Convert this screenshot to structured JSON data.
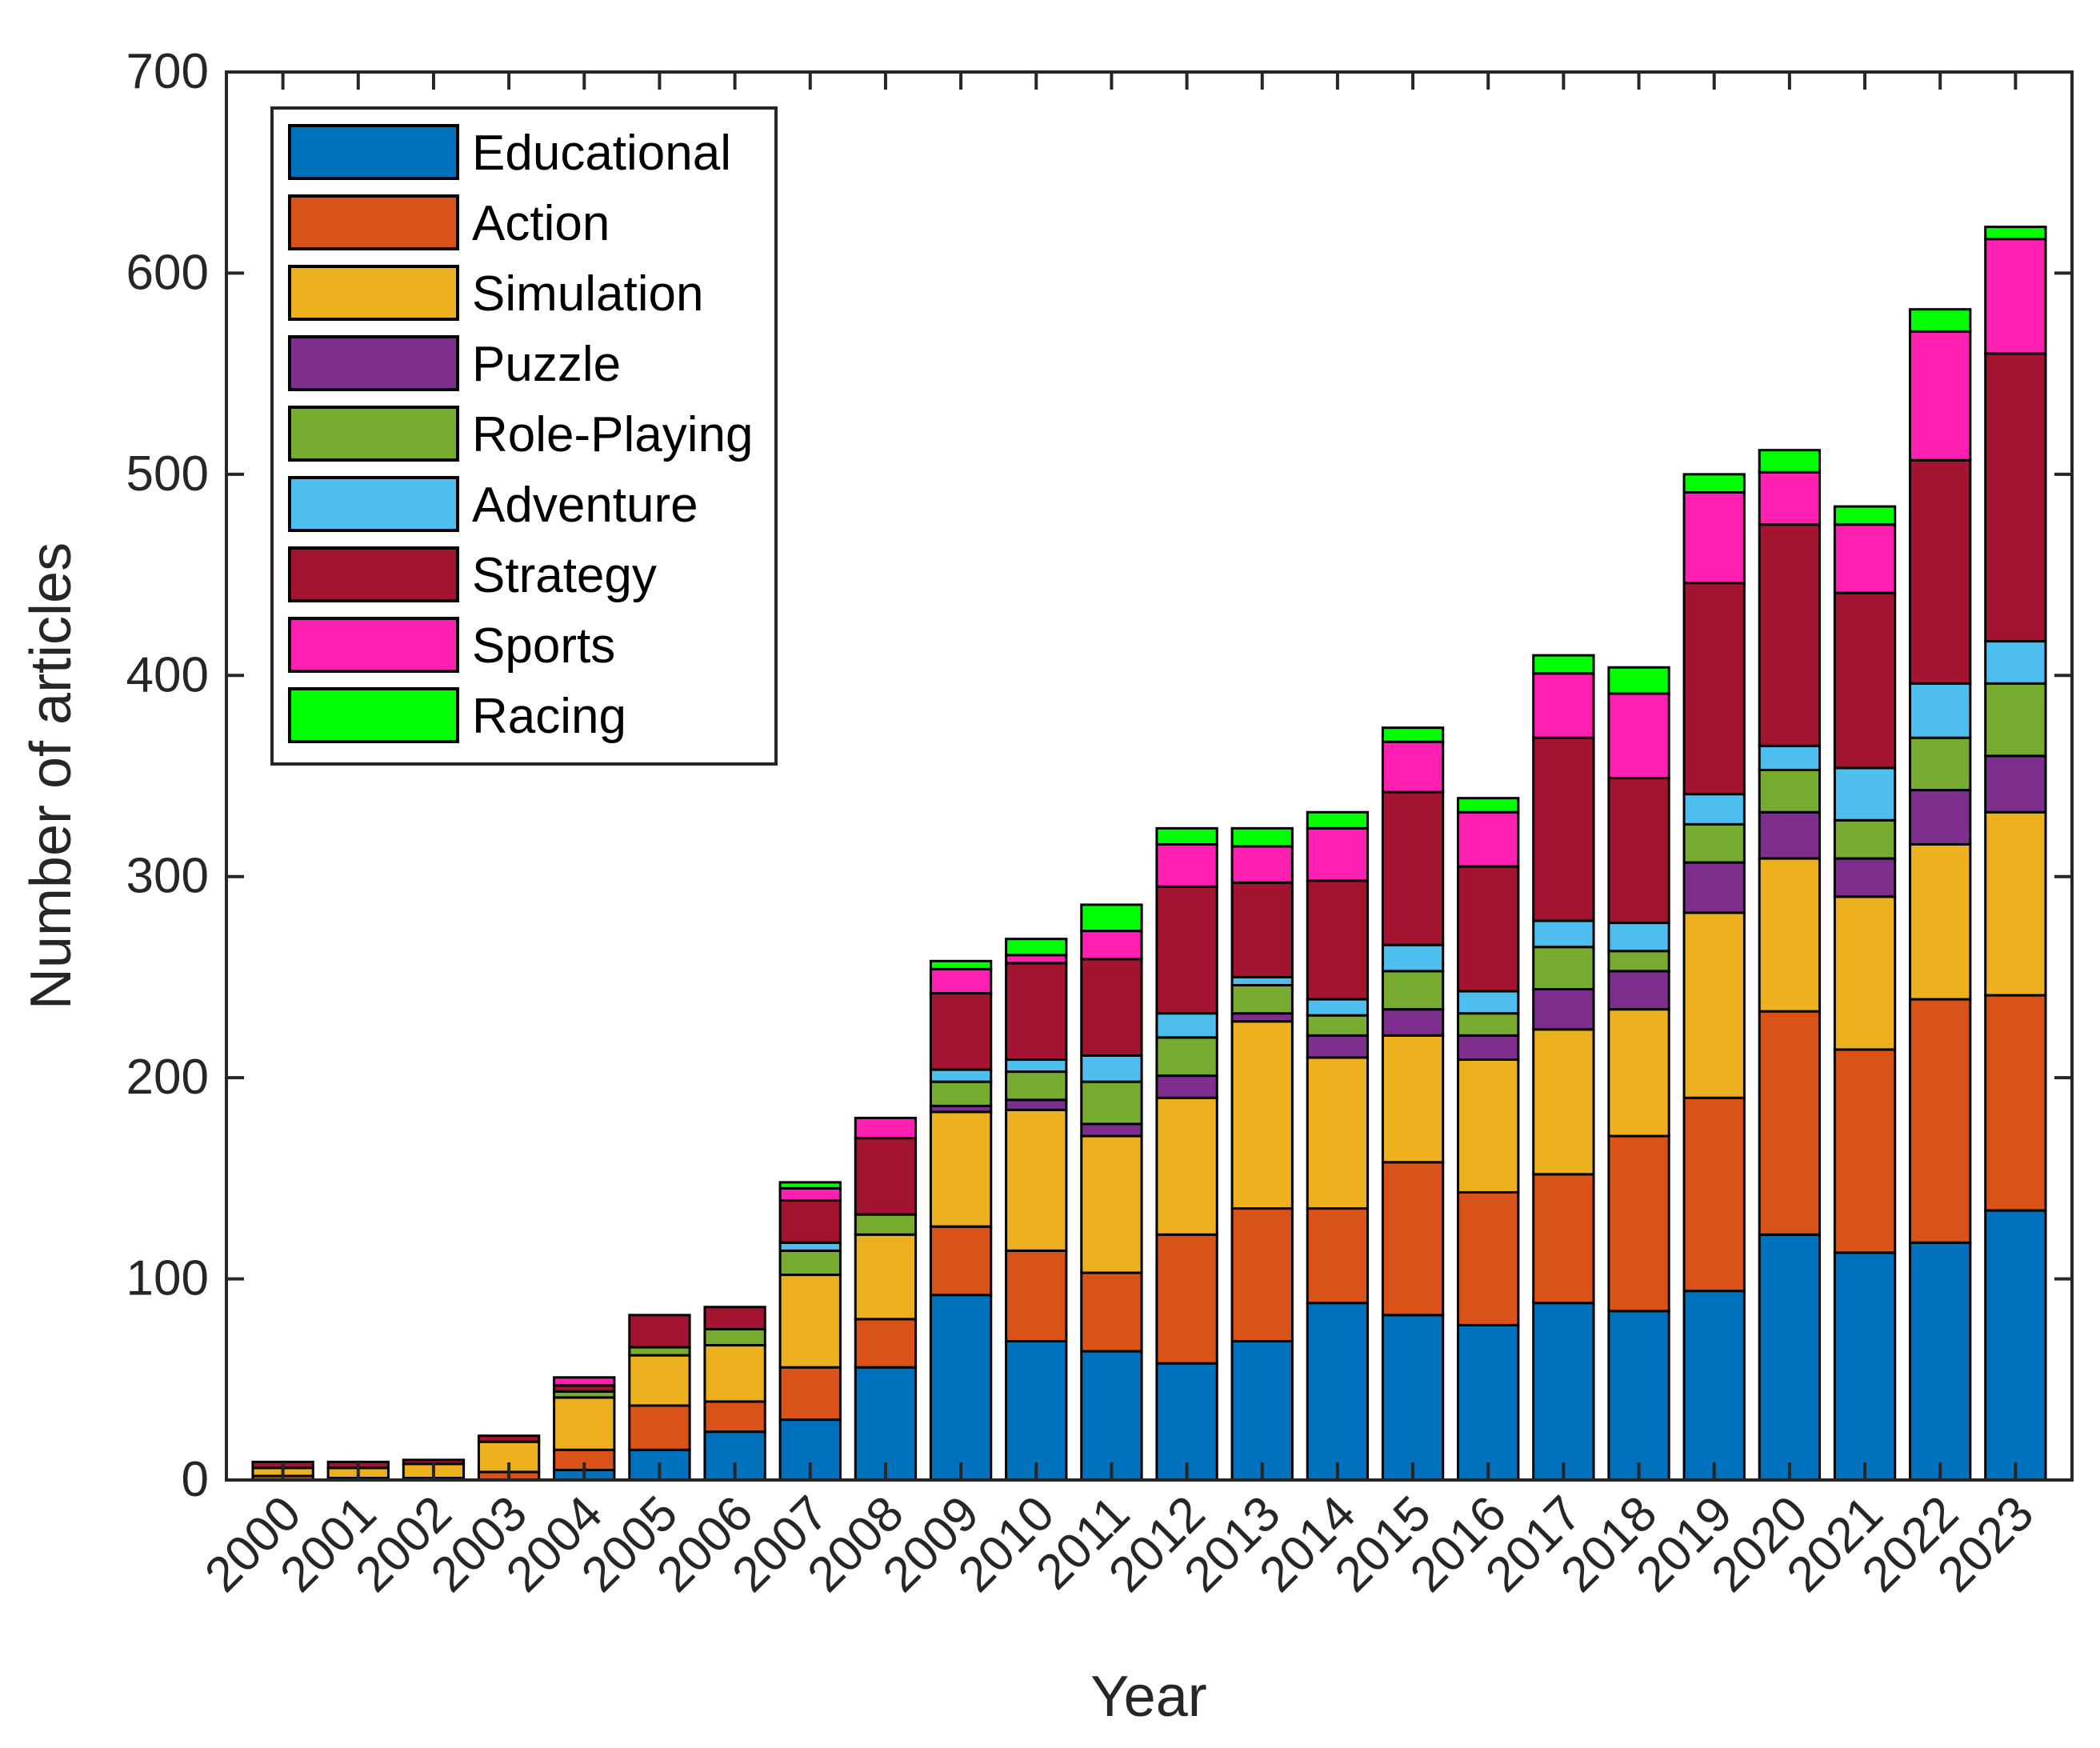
{
  "chart_data": {
    "type": "bar",
    "stacked": true,
    "title": "",
    "xlabel": "Year",
    "ylabel": "Number of articles",
    "ylim": [
      0,
      700
    ],
    "yticks": [
      0,
      100,
      200,
      300,
      400,
      500,
      600,
      700
    ],
    "grid": false,
    "legend_position": "top-left",
    "categories": [
      "2000",
      "2001",
      "2002",
      "2003",
      "2004",
      "2005",
      "2006",
      "2007",
      "2008",
      "2009",
      "2010",
      "2011",
      "2012",
      "2013",
      "2014",
      "2015",
      "2016",
      "2017",
      "2018",
      "2019",
      "2020",
      "2021",
      "2022",
      "2023"
    ],
    "series": [
      {
        "name": "Educational",
        "color": "#0072BD",
        "values": [
          0,
          0,
          0,
          0,
          5,
          15,
          24,
          30,
          56,
          92,
          69,
          64,
          58,
          69,
          88,
          82,
          77,
          88,
          84,
          94,
          122,
          113,
          118,
          134
        ]
      },
      {
        "name": "Action",
        "color": "#D95319",
        "values": [
          2,
          1,
          1,
          4,
          10,
          22,
          15,
          26,
          24,
          34,
          45,
          39,
          64,
          66,
          47,
          76,
          66,
          64,
          87,
          96,
          111,
          101,
          121,
          107
        ]
      },
      {
        "name": "Simulation",
        "color": "#EDB120",
        "values": [
          4,
          5,
          7,
          15,
          26,
          25,
          28,
          46,
          42,
          57,
          70,
          68,
          68,
          93,
          75,
          63,
          66,
          72,
          63,
          92,
          76,
          76,
          77,
          91
        ]
      },
      {
        "name": "Puzzle",
        "color": "#7E2F8E",
        "values": [
          0,
          0,
          0,
          0,
          0,
          0,
          0,
          0,
          0,
          3,
          5,
          6,
          11,
          4,
          11,
          13,
          12,
          20,
          19,
          25,
          23,
          19,
          27,
          28
        ]
      },
      {
        "name": "Role-Playing",
        "color": "#77AC30",
        "values": [
          0,
          0,
          0,
          0,
          3,
          4,
          8,
          12,
          10,
          12,
          14,
          21,
          19,
          14,
          10,
          19,
          11,
          21,
          10,
          19,
          21,
          19,
          26,
          36
        ]
      },
      {
        "name": "Adventure",
        "color": "#4DBEEE",
        "values": [
          0,
          0,
          0,
          0,
          0,
          0,
          0,
          4,
          0,
          6,
          6,
          13,
          12,
          4,
          8,
          13,
          11,
          13,
          14,
          15,
          12,
          26,
          27,
          21
        ]
      },
      {
        "name": "Strategy",
        "color": "#A2142F",
        "values": [
          3,
          3,
          2,
          3,
          3,
          16,
          11,
          21,
          38,
          38,
          48,
          48,
          63,
          47,
          59,
          76,
          62,
          91,
          72,
          105,
          110,
          87,
          111,
          143
        ]
      },
      {
        "name": "Sports",
        "color": "#FF1FB1",
        "values": [
          0,
          0,
          0,
          0,
          4,
          0,
          0,
          6,
          10,
          12,
          4,
          14,
          21,
          18,
          26,
          25,
          27,
          32,
          42,
          45,
          26,
          34,
          64,
          57
        ]
      },
      {
        "name": "Racing",
        "color": "#00FF00",
        "values": [
          0,
          0,
          0,
          0,
          0,
          0,
          0,
          3,
          0,
          4,
          8,
          13,
          8,
          9,
          8,
          7,
          7,
          9,
          13,
          9,
          11,
          9,
          11,
          6
        ]
      }
    ]
  }
}
